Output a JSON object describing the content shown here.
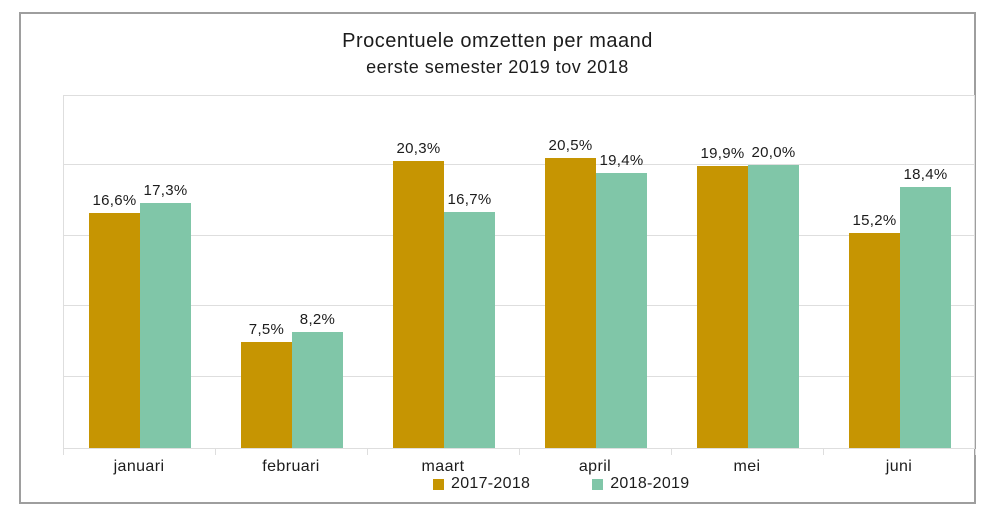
{
  "title": {
    "line1": "Procentuele omzetten per maand",
    "line2": "eerste semester 2019 tov 2018"
  },
  "chart_data": {
    "type": "bar",
    "title": "Procentuele omzetten per maand",
    "subtitle": "eerste semester 2019 tov 2018",
    "categories": [
      "januari",
      "februari",
      "maart",
      "april",
      "mei",
      "juni"
    ],
    "series": [
      {
        "name": "2017-2018",
        "color": "#c69502",
        "values": [
          16.6,
          7.5,
          20.3,
          20.5,
          19.9,
          15.2
        ],
        "labels": [
          "16,6%",
          "7,5%",
          "20,3%",
          "20,5%",
          "19,9%",
          "15,2%"
        ]
      },
      {
        "name": "2018-2019",
        "color": "#80c6a8",
        "values": [
          17.3,
          8.2,
          16.7,
          19.4,
          20.0,
          18.4
        ],
        "labels": [
          "17,3%",
          "8,2%",
          "16,7%",
          "19,4%",
          "20,0%",
          "18,4%"
        ]
      }
    ],
    "xlabel": "",
    "ylabel": "",
    "ylim": [
      0,
      25
    ],
    "grid_step": 5,
    "grid": true,
    "y_axis_labels_visible": false,
    "legend_position": "bottom",
    "value_labels_visible": true
  },
  "colors": {
    "frame_border": "#9e9e9e",
    "grid": "#dedede",
    "text": "#1c1c1c",
    "background": "#ffffff"
  }
}
